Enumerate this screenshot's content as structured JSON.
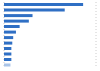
{
  "chart_data": {
    "type": "bar",
    "orientation": "horizontal",
    "categories": [
      null,
      null,
      null,
      null,
      null,
      null,
      null,
      null,
      null,
      null,
      null,
      null
    ],
    "values": [
      86,
      66,
      31,
      27,
      17,
      13,
      10,
      9,
      8,
      8,
      8,
      7
    ],
    "colors": [
      "#2f6fc4",
      "#2f6fc4",
      "#2f6fc4",
      "#2f6fc4",
      "#2f6fc4",
      "#2f6fc4",
      "#2f6fc4",
      "#2f6fc4",
      "#2f6fc4",
      "#2f6fc4",
      "#2f6fc4",
      "#a9c4e8"
    ],
    "xlim": [
      0,
      100
    ],
    "xticks": [
      0,
      25,
      50,
      75,
      100
    ],
    "grid": true,
    "tick_labels": false
  }
}
